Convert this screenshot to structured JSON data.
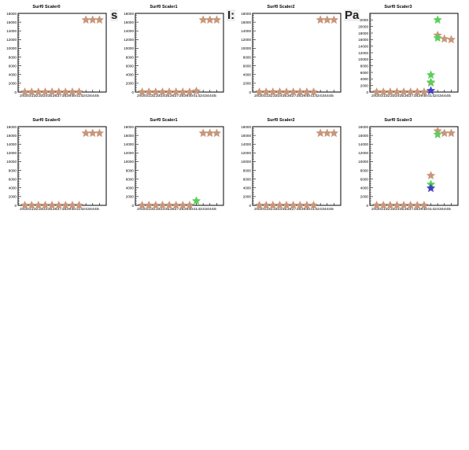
{
  "overlay_fragments": [
    "s",
    "I:",
    "Pa"
  ],
  "chart_data": [
    {
      "type": "scatter",
      "title": "Surf0 Scaler0",
      "ylim": [
        0,
        18000
      ],
      "yticks": [
        0,
        2000,
        4000,
        6000,
        8000,
        10000,
        12000,
        14000,
        16000,
        18000
      ],
      "x_tick_text": "2930313233343536373839404142434445",
      "series": [
        {
          "color": "#c8967a",
          "x": [
            1,
            2,
            3,
            4,
            5,
            6,
            7,
            8,
            9,
            10,
            11,
            12
          ],
          "y": [
            0,
            0,
            0,
            0,
            0,
            0,
            0,
            0,
            0,
            16500,
            16500,
            16500
          ]
        }
      ]
    },
    {
      "type": "scatter",
      "title": "Surf0 Scaler1",
      "ylim": [
        0,
        18000
      ],
      "yticks": [
        0,
        2000,
        4000,
        6000,
        8000,
        10000,
        12000,
        14000,
        16000,
        18000
      ],
      "x_tick_text": "2930313233343536373839404142434445",
      "series": [
        {
          "color": "#c8967a",
          "x": [
            1,
            2,
            3,
            4,
            5,
            6,
            7,
            8,
            9,
            10,
            11,
            12
          ],
          "y": [
            0,
            0,
            0,
            0,
            0,
            0,
            0,
            0,
            200,
            16500,
            16500,
            16500
          ]
        }
      ]
    },
    {
      "type": "scatter",
      "title": "Surf0 Scaler2",
      "ylim": [
        0,
        18000
      ],
      "yticks": [
        0,
        2000,
        4000,
        6000,
        8000,
        10000,
        12000,
        14000,
        16000,
        18000
      ],
      "x_tick_text": "2930313233343536373839404142434445",
      "series": [
        {
          "color": "#c8967a",
          "x": [
            1,
            2,
            3,
            4,
            5,
            6,
            7,
            8,
            9,
            10,
            11,
            12
          ],
          "y": [
            0,
            0,
            0,
            0,
            0,
            0,
            0,
            0,
            0,
            16500,
            16500,
            16500
          ]
        }
      ]
    },
    {
      "type": "scatter",
      "title": "Surf0 Scaler3",
      "ylim": [
        0,
        24000
      ],
      "yticks": [
        0,
        2000,
        4000,
        6000,
        8000,
        10000,
        12000,
        14000,
        16000,
        18000,
        20000,
        22000
      ],
      "x_tick_text": "2930313233343536373839404142434445",
      "series": [
        {
          "color": "#c8967a",
          "x": [
            1,
            2,
            3,
            4,
            5,
            6,
            7,
            8,
            9,
            10,
            11,
            12
          ],
          "y": [
            0,
            0,
            0,
            0,
            0,
            0,
            0,
            0,
            2800,
            17300,
            16200,
            16000
          ]
        },
        {
          "color": "#5ad05a",
          "x": [
            9,
            9,
            10,
            10
          ],
          "y": [
            5200,
            3000,
            22000,
            16500
          ]
        },
        {
          "color": "#4040c8",
          "x": [
            9
          ],
          "y": [
            400
          ]
        }
      ]
    },
    {
      "type": "scatter",
      "title": "Surf0 Scaler0",
      "ylim": [
        0,
        18000
      ],
      "yticks": [
        0,
        2000,
        4000,
        6000,
        8000,
        10000,
        12000,
        14000,
        16000,
        18000
      ],
      "x_tick_text": "2930313233343536373839404142434445",
      "series": [
        {
          "color": "#c8967a",
          "x": [
            1,
            2,
            3,
            4,
            5,
            6,
            7,
            8,
            9,
            10,
            11,
            12
          ],
          "y": [
            0,
            0,
            0,
            0,
            0,
            0,
            0,
            0,
            0,
            16500,
            16500,
            16500
          ]
        }
      ]
    },
    {
      "type": "scatter",
      "title": "Surf0 Scaler1",
      "ylim": [
        0,
        18000
      ],
      "yticks": [
        0,
        2000,
        4000,
        6000,
        8000,
        10000,
        12000,
        14000,
        16000,
        18000
      ],
      "x_tick_text": "2930313233343536373839404142434445",
      "series": [
        {
          "color": "#c8967a",
          "x": [
            1,
            2,
            3,
            4,
            5,
            6,
            7,
            8,
            10,
            11,
            12
          ],
          "y": [
            0,
            0,
            0,
            0,
            0,
            0,
            0,
            0,
            16500,
            16500,
            16500
          ]
        },
        {
          "color": "#5ad05a",
          "x": [
            9
          ],
          "y": [
            1000
          ]
        }
      ]
    },
    {
      "type": "scatter",
      "title": "Surf0 Scaler2",
      "ylim": [
        0,
        18000
      ],
      "yticks": [
        0,
        2000,
        4000,
        6000,
        8000,
        10000,
        12000,
        14000,
        16000,
        18000
      ],
      "x_tick_text": "2930313233343536373839404142434445",
      "series": [
        {
          "color": "#c8967a",
          "x": [
            1,
            2,
            3,
            4,
            5,
            6,
            7,
            8,
            9,
            10,
            11,
            12
          ],
          "y": [
            0,
            0,
            0,
            0,
            0,
            0,
            0,
            0,
            0,
            16500,
            16500,
            16500
          ]
        }
      ]
    },
    {
      "type": "scatter",
      "title": "Surf0 Scaler3",
      "ylim": [
        0,
        18000
      ],
      "yticks": [
        0,
        2000,
        4000,
        6000,
        8000,
        10000,
        12000,
        14000,
        16000,
        18000
      ],
      "x_tick_text": "2930313233343536373839404142434445",
      "series": [
        {
          "color": "#c8967a",
          "x": [
            1,
            2,
            3,
            4,
            5,
            6,
            7,
            8,
            9,
            10,
            11,
            12
          ],
          "y": [
            0,
            0,
            0,
            0,
            0,
            0,
            0,
            0,
            6800,
            17000,
            16500,
            16500
          ]
        },
        {
          "color": "#5ad05a",
          "x": [
            9,
            10
          ],
          "y": [
            4800,
            16200
          ]
        },
        {
          "color": "#4040c8",
          "x": [
            9
          ],
          "y": [
            3900
          ]
        }
      ]
    }
  ]
}
